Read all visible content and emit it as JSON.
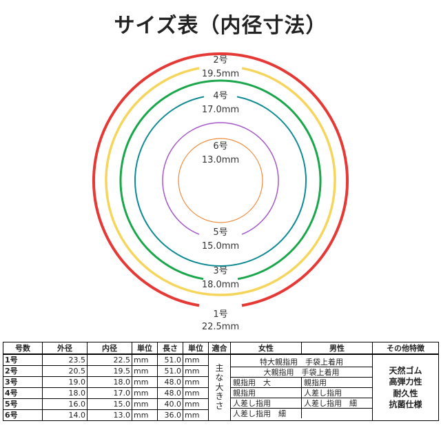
{
  "title": "サイズ表（内径寸法）",
  "rings": [
    {
      "number": "1号",
      "inner": "22.5mm",
      "color": "#e53935"
    },
    {
      "number": "2号",
      "inner": "19.5mm",
      "color": "#f6d55c"
    },
    {
      "number": "3号",
      "inner": "18.0mm",
      "color": "#1aa64a"
    },
    {
      "number": "4号",
      "inner": "17.0mm",
      "color": "#0e8a93"
    },
    {
      "number": "5号",
      "inner": "15.0mm",
      "color": "#a356c9"
    },
    {
      "number": "6号",
      "inner": "13.0mm",
      "color": "#f08a3c"
    }
  ],
  "table": {
    "headers": [
      "号数",
      "外径",
      "内径",
      "単位",
      "長さ",
      "単位",
      "適合",
      "女性",
      "男性",
      "その他特徴"
    ],
    "rows": [
      {
        "label": "1号",
        "outer": "23.5",
        "inner": "22.5",
        "unit1": "mm",
        "length": "51.0",
        "unit2": "mm"
      },
      {
        "label": "2号",
        "outer": "20.5",
        "inner": "19.5",
        "unit1": "mm",
        "length": "51.0",
        "unit2": "mm"
      },
      {
        "label": "3号",
        "outer": "19.0",
        "inner": "18.0",
        "unit1": "mm",
        "length": "48.0",
        "unit2": "mm"
      },
      {
        "label": "4号",
        "outer": "18.0",
        "inner": "17.0",
        "unit1": "mm",
        "length": "48.0",
        "unit2": "mm"
      },
      {
        "label": "5号",
        "outer": "16.0",
        "inner": "15.0",
        "unit1": "mm",
        "length": "40.0",
        "unit2": "mm"
      },
      {
        "label": "6号",
        "outer": "14.0",
        "inner": "13.0",
        "unit1": "mm",
        "length": "36.0",
        "unit2": "mm"
      }
    ],
    "fit_label": "主\nな\n大\nき\nさ",
    "fit_rows": [
      {
        "full": "特大親指用　手袋上着用"
      },
      {
        "full": "大親指用　手袋上着用"
      },
      {
        "women": "親指用　大",
        "men": "親指用"
      },
      {
        "women": "親指用",
        "men": "人差し指用"
      },
      {
        "women": "人差し指用",
        "men": "人差し指用　細"
      },
      {
        "women": "人差し指用　細",
        "men": ""
      }
    ],
    "features": "天然ゴム\n高弾力性\n耐久性\n抗菌仕様"
  }
}
